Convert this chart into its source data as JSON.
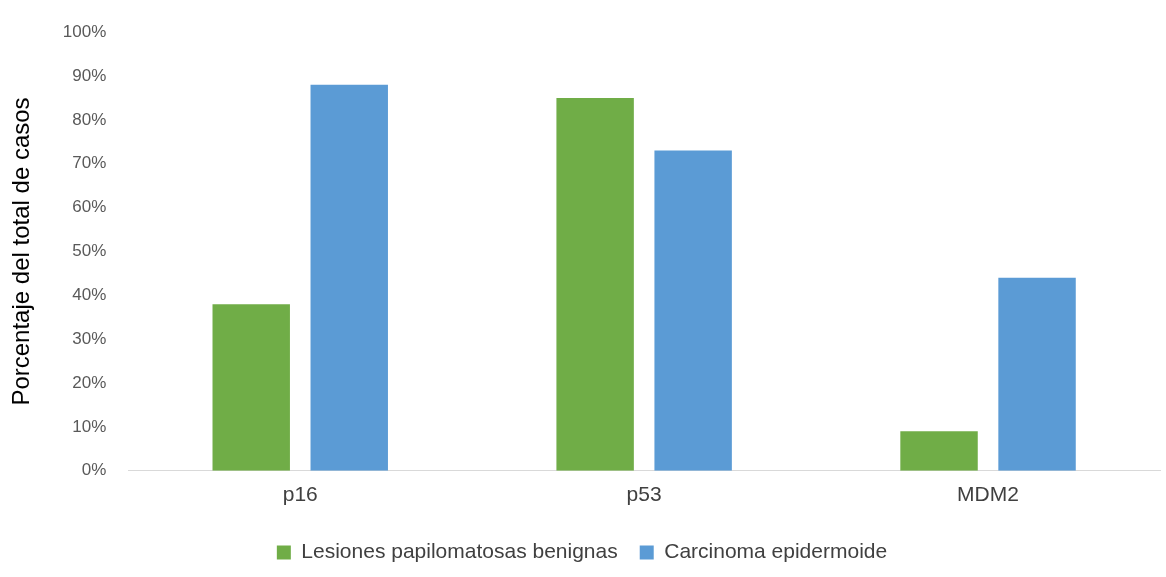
{
  "chart_data": {
    "type": "bar",
    "ylabel": "Porcentaje del total de casos",
    "categories": [
      "p16",
      "p53",
      "MDM2"
    ],
    "series": [
      {
        "name": "Lesiones papilomatosas benignas",
        "color": "#70ad47",
        "values": [
          38,
          85,
          9
        ]
      },
      {
        "name": "Carcinoma epidermoide",
        "color": "#5b9bd5",
        "values": [
          88,
          73,
          44
        ]
      }
    ],
    "ylim": [
      0,
      100
    ],
    "yticks": [
      {
        "value": 0,
        "label": "0%"
      },
      {
        "value": 10,
        "label": "10%"
      },
      {
        "value": 20,
        "label": "20%"
      },
      {
        "value": 30,
        "label": "30%"
      },
      {
        "value": 40,
        "label": "40%"
      },
      {
        "value": 50,
        "label": "50%"
      },
      {
        "value": 60,
        "label": "60%"
      },
      {
        "value": 70,
        "label": "70%"
      },
      {
        "value": 80,
        "label": "80%"
      },
      {
        "value": 90,
        "label": "90%"
      },
      {
        "value": 100,
        "label": "100%"
      }
    ],
    "grid": false,
    "legend": "bottom"
  }
}
